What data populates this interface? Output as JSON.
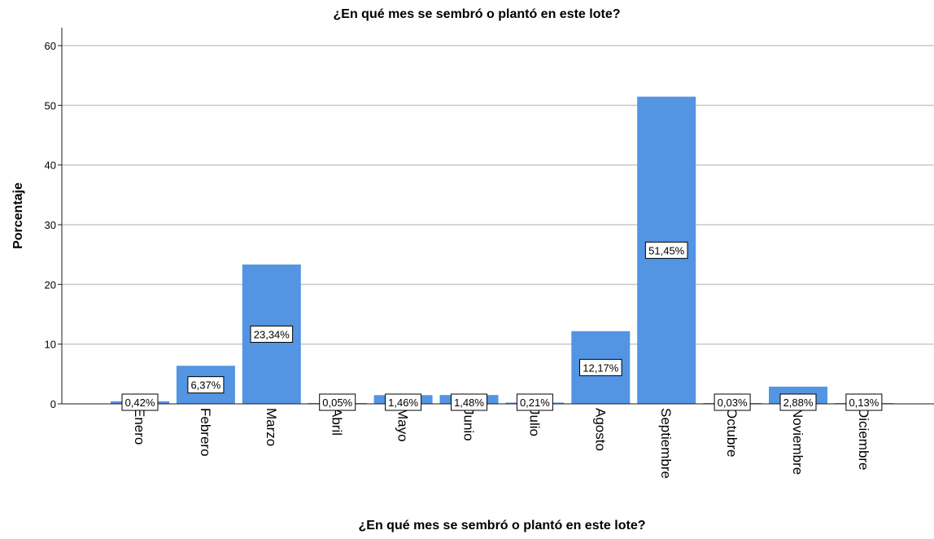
{
  "chart_data": {
    "type": "bar",
    "title": "¿En qué mes se sembró o plantó en este lote?",
    "xlabel": "¿En qué mes se sembró o plantó en este lote?",
    "ylabel": "Porcentaje",
    "categories": [
      "Enero",
      "Febrero",
      "Marzo",
      "Abril",
      "Mayo",
      "Junio",
      "Julio",
      "Agosto",
      "Septiembre",
      "Octubre",
      "Noviembre",
      "Diciembre"
    ],
    "values": [
      0.42,
      6.37,
      23.34,
      0.05,
      1.46,
      1.48,
      0.21,
      12.17,
      51.45,
      0.03,
      2.88,
      0.13
    ],
    "data_labels": [
      "0,42%",
      "6,37%",
      "23,34%",
      "0,05%",
      "1,46%",
      "1,48%",
      "0,21%",
      "12,17%",
      "51,45%",
      "0,03%",
      "2,88%",
      "0,13%"
    ],
    "yticks": [
      0,
      10,
      20,
      30,
      40,
      50,
      60
    ],
    "ylim": [
      0,
      63
    ],
    "grid": true,
    "bar_color": "#5394e3"
  }
}
